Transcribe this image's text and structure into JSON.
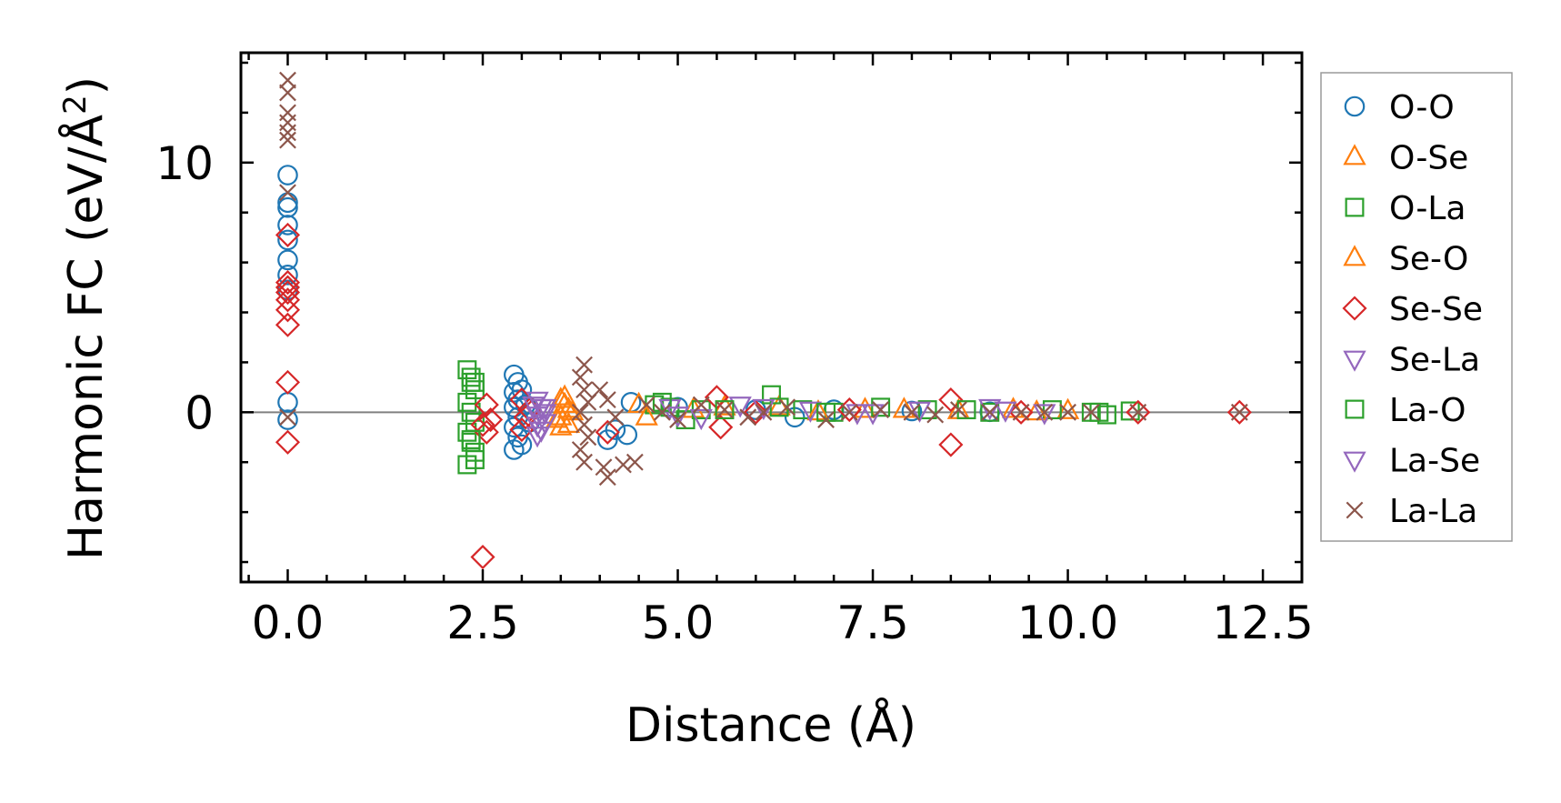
{
  "chart_data": {
    "type": "scatter",
    "title": "",
    "xlabel": "Distance (Å)",
    "ylabel_main": "Harmonic FC (eV/Å",
    "ylabel_sup": "2",
    "ylabel_close": ")",
    "xlim": [
      -0.6,
      13.0
    ],
    "ylim": [
      -6.8,
      14.4
    ],
    "xticks": [
      0.0,
      2.5,
      5.0,
      7.5,
      10.0,
      12.5
    ],
    "xtick_labels": [
      "0.0",
      "2.5",
      "5.0",
      "7.5",
      "10.0",
      "12.5"
    ],
    "yticks": [
      0,
      10
    ],
    "ytick_labels": [
      "0",
      "10"
    ],
    "zero_line": true,
    "legend_position": "right-outside",
    "series": [
      {
        "name": "O-O",
        "marker": "circle",
        "color": "#1f77b4",
        "points": [
          [
            0,
            9.5
          ],
          [
            0,
            8.4
          ],
          [
            0,
            8.2
          ],
          [
            0,
            7.5
          ],
          [
            0,
            6.9
          ],
          [
            0,
            6.1
          ],
          [
            0,
            5.5
          ],
          [
            0,
            4.9
          ],
          [
            0,
            0.4
          ],
          [
            0,
            -0.3
          ],
          [
            2.9,
            1.5
          ],
          [
            2.95,
            1.2
          ],
          [
            2.9,
            0.8
          ],
          [
            2.95,
            0.5
          ],
          [
            2.9,
            0.2
          ],
          [
            2.95,
            -0.2
          ],
          [
            2.9,
            -0.6
          ],
          [
            2.95,
            -1.0
          ],
          [
            3.0,
            -1.3
          ],
          [
            2.9,
            -1.5
          ],
          [
            3.05,
            0.3
          ],
          [
            3.1,
            -0.4
          ],
          [
            3.0,
            0.9
          ],
          [
            4.1,
            -1.1
          ],
          [
            4.2,
            -0.7
          ],
          [
            4.35,
            -0.9
          ],
          [
            4.4,
            0.4
          ],
          [
            5.0,
            0.2
          ],
          [
            6.0,
            0.1
          ],
          [
            6.5,
            -0.2
          ],
          [
            7.0,
            0.1
          ],
          [
            8.0,
            0.05
          ],
          [
            9.0,
            0.02
          ]
        ]
      },
      {
        "name": "O-Se",
        "marker": "triangle-up",
        "color": "#ff7f0e",
        "points": [
          [
            3.5,
            0.5
          ],
          [
            3.55,
            0.3
          ],
          [
            3.5,
            -0.2
          ],
          [
            3.6,
            -0.5
          ],
          [
            3.65,
            0.0
          ],
          [
            3.45,
            -0.3
          ],
          [
            4.5,
            0.3
          ],
          [
            5.2,
            0.1
          ],
          [
            6.3,
            0.2
          ],
          [
            7.4,
            0.1
          ],
          [
            8.6,
            0.05
          ],
          [
            9.3,
            0.1
          ],
          [
            10.0,
            0.05
          ]
        ]
      },
      {
        "name": "O-La",
        "marker": "square",
        "color": "#2ca02c",
        "points": [
          [
            2.3,
            1.7
          ],
          [
            2.35,
            1.2
          ],
          [
            2.4,
            0.9
          ],
          [
            2.3,
            0.4
          ],
          [
            2.35,
            0.0
          ],
          [
            2.4,
            -0.4
          ],
          [
            2.3,
            -0.8
          ],
          [
            2.35,
            -1.2
          ],
          [
            2.4,
            -1.6
          ],
          [
            2.3,
            -2.1
          ],
          [
            2.4,
            -1.9
          ],
          [
            2.35,
            1.4
          ],
          [
            4.7,
            0.3
          ],
          [
            4.9,
            0.2
          ],
          [
            5.1,
            -0.3
          ],
          [
            5.3,
            0.1
          ],
          [
            6.2,
            0.7
          ],
          [
            6.3,
            0.2
          ],
          [
            6.6,
            0.1
          ],
          [
            7.0,
            0.0
          ],
          [
            7.6,
            0.2
          ],
          [
            8.2,
            0.1
          ],
          [
            9.0,
            0.0
          ],
          [
            9.8,
            0.1
          ],
          [
            10.3,
            0.0
          ],
          [
            10.5,
            -0.1
          ],
          [
            10.8,
            0.05
          ]
        ]
      },
      {
        "name": "Se-O",
        "marker": "triangle-up",
        "color": "#ff7f0e",
        "points": [
          [
            3.55,
            0.6
          ],
          [
            3.6,
            0.1
          ],
          [
            3.5,
            -0.6
          ],
          [
            4.6,
            -0.2
          ],
          [
            5.6,
            0.2
          ],
          [
            6.8,
            0.0
          ],
          [
            7.9,
            0.1
          ],
          [
            9.6,
            0.0
          ]
        ]
      },
      {
        "name": "Se-Se",
        "marker": "diamond",
        "color": "#d62728",
        "points": [
          [
            0,
            7.1
          ],
          [
            0,
            5.2
          ],
          [
            0,
            5.0
          ],
          [
            0,
            4.8
          ],
          [
            0,
            4.5
          ],
          [
            0,
            4.1
          ],
          [
            0,
            3.5
          ],
          [
            0,
            1.2
          ],
          [
            0,
            -1.2
          ],
          [
            2.5,
            -5.8
          ],
          [
            2.55,
            0.3
          ],
          [
            2.6,
            -0.3
          ],
          [
            2.55,
            -0.8
          ],
          [
            2.5,
            -0.5
          ],
          [
            3.0,
            0.5
          ],
          [
            3.05,
            -0.2
          ],
          [
            3.0,
            -0.7
          ],
          [
            3.1,
            0.1
          ],
          [
            4.1,
            -0.8
          ],
          [
            5.5,
            0.6
          ],
          [
            5.55,
            -0.6
          ],
          [
            6.0,
            0.0
          ],
          [
            7.2,
            0.1
          ],
          [
            8.5,
            0.5
          ],
          [
            8.5,
            -1.3
          ],
          [
            9.4,
            0.0
          ],
          [
            10.9,
            0.0
          ],
          [
            12.2,
            0.0
          ]
        ]
      },
      {
        "name": "Se-La",
        "marker": "triangle-down",
        "color": "#9467bd",
        "points": [
          [
            3.2,
            0.5
          ],
          [
            3.25,
            0.2
          ],
          [
            3.2,
            -0.1
          ],
          [
            3.3,
            -0.4
          ],
          [
            3.25,
            -0.7
          ],
          [
            3.15,
            0.3
          ],
          [
            3.3,
            0.0
          ],
          [
            3.2,
            -0.9
          ],
          [
            4.9,
            0.2
          ],
          [
            5.3,
            -0.2
          ],
          [
            5.8,
            0.3
          ],
          [
            6.7,
            0.1
          ],
          [
            7.3,
            0.0
          ],
          [
            8.1,
            0.1
          ],
          [
            9.0,
            0.2
          ],
          [
            9.7,
            0.0
          ]
        ]
      },
      {
        "name": "La-O",
        "marker": "square",
        "color": "#2ca02c",
        "points": [
          [
            2.4,
            1.2
          ],
          [
            2.35,
            -1.1
          ],
          [
            4.8,
            0.4
          ],
          [
            5.6,
            0.1
          ],
          [
            6.9,
            0.0
          ],
          [
            8.7,
            0.1
          ],
          [
            10.4,
            0.0
          ]
        ]
      },
      {
        "name": "La-Se",
        "marker": "triangle-down",
        "color": "#9467bd",
        "points": [
          [
            3.3,
            0.2
          ],
          [
            3.2,
            -0.5
          ],
          [
            5.0,
            -0.1
          ],
          [
            6.1,
            0.2
          ],
          [
            7.5,
            0.0
          ],
          [
            9.2,
            0.1
          ]
        ]
      },
      {
        "name": "La-La",
        "marker": "x",
        "color": "#8c564b",
        "points": [
          [
            0,
            13.3
          ],
          [
            0,
            12.8
          ],
          [
            0,
            12.0
          ],
          [
            0,
            11.6
          ],
          [
            0,
            11.2
          ],
          [
            0,
            10.9
          ],
          [
            0,
            8.8
          ],
          [
            0,
            -0.2
          ],
          [
            3.8,
            1.9
          ],
          [
            3.75,
            1.4
          ],
          [
            3.8,
            0.9
          ],
          [
            3.85,
            0.4
          ],
          [
            3.75,
            0.0
          ],
          [
            3.8,
            -0.5
          ],
          [
            3.85,
            -1.0
          ],
          [
            3.75,
            -1.5
          ],
          [
            3.8,
            -2.0
          ],
          [
            4.0,
            0.9
          ],
          [
            4.1,
            0.5
          ],
          [
            4.2,
            -0.2
          ],
          [
            4.1,
            -2.6
          ],
          [
            4.05,
            -2.2
          ],
          [
            4.3,
            -2.1
          ],
          [
            4.45,
            -2.0
          ],
          [
            4.6,
            0.3
          ],
          [
            4.8,
            0.0
          ],
          [
            5.0,
            -0.3
          ],
          [
            5.3,
            0.3
          ],
          [
            5.6,
            0.1
          ],
          [
            5.9,
            -0.2
          ],
          [
            6.1,
            0.0
          ],
          [
            6.4,
            0.2
          ],
          [
            6.9,
            -0.3
          ],
          [
            7.2,
            0.0
          ],
          [
            7.6,
            0.1
          ],
          [
            8.0,
            0.0
          ],
          [
            8.3,
            -0.1
          ],
          [
            8.6,
            0.1
          ],
          [
            9.0,
            0.0
          ],
          [
            9.4,
            0.0
          ],
          [
            9.7,
            0.0
          ],
          [
            10.0,
            0.0
          ],
          [
            10.3,
            0.0
          ],
          [
            10.9,
            0.0
          ],
          [
            12.2,
            0.0
          ]
        ]
      }
    ]
  }
}
